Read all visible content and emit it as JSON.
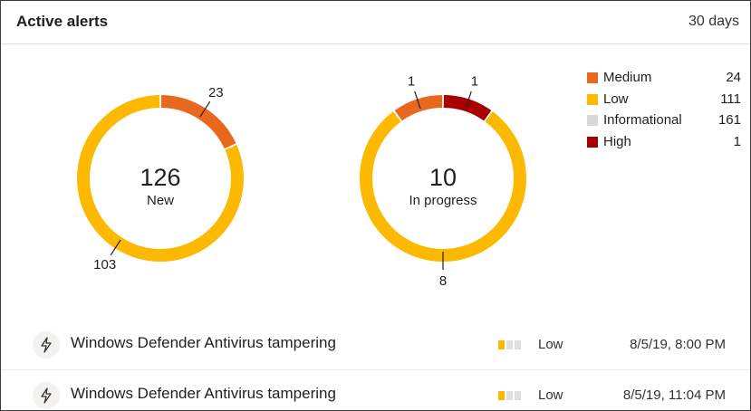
{
  "header": {
    "title": "Active alerts",
    "period": "30 days"
  },
  "donuts": [
    {
      "total": "126",
      "label": "New",
      "segments": [
        {
          "name": "Medium",
          "value": 23,
          "label": "23"
        },
        {
          "name": "Low",
          "value": 103,
          "label": "103"
        }
      ]
    },
    {
      "total": "10",
      "label": "In progress",
      "segments": [
        {
          "name": "High",
          "value": 1,
          "label": "1"
        },
        {
          "name": "Low",
          "value": 8,
          "label": "8"
        },
        {
          "name": "Medium",
          "value": 1,
          "label": "1"
        }
      ]
    }
  ],
  "legend": [
    {
      "label": "Medium",
      "count": "24",
      "color": "#e8681d"
    },
    {
      "label": "Low",
      "count": "111",
      "color": "#fcb900"
    },
    {
      "label": "Informational",
      "count": "161",
      "color": "#d9d9d9"
    },
    {
      "label": "High",
      "count": "1",
      "color": "#a80000"
    }
  ],
  "colors": {
    "Medium": "#e8681d",
    "Low": "#fcb900",
    "Informational": "#d9d9d9",
    "High": "#a80000",
    "inactive_bar": "#e1dfdd"
  },
  "alerts": [
    {
      "icon": "lightning-bolt-icon",
      "name": "Windows Defender Antivirus tampering",
      "severity": "Low",
      "time": "8/5/19, 8:00 PM"
    },
    {
      "icon": "lightning-bolt-icon",
      "name": "Windows Defender Antivirus tampering",
      "severity": "Low",
      "time": "8/5/19, 11:04 PM"
    }
  ]
}
